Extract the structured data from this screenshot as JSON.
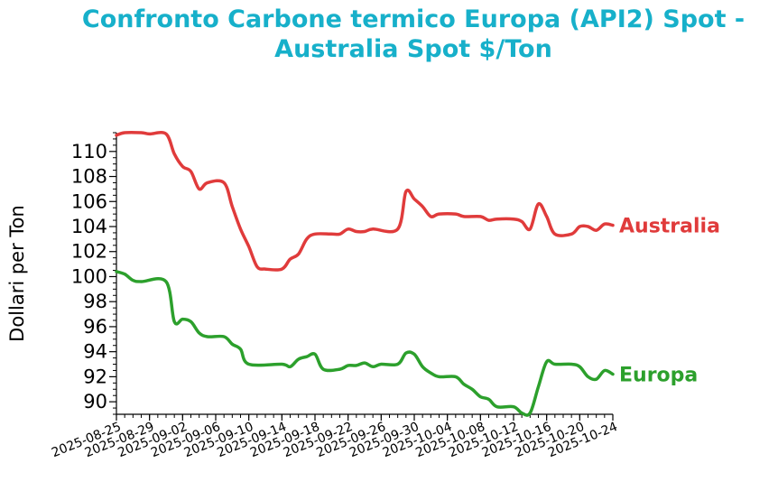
{
  "chart_data": {
    "type": "line",
    "title_lines": [
      "Confronto Carbone termico Europa (API2) Spot -",
      "Australia Spot $/Ton"
    ],
    "ylabel": "Dollari per Ton",
    "xlabel": "",
    "ylim": [
      89.0,
      111.5
    ],
    "yticks": [
      90,
      92,
      94,
      96,
      98,
      100,
      102,
      104,
      106,
      108,
      110
    ],
    "xlim": [
      "2025-08-25",
      "2025-10-24"
    ],
    "xticks": [
      "2025-08-25",
      "2025-08-29",
      "2025-09-02",
      "2025-09-06",
      "2025-09-10",
      "2025-09-14",
      "2025-09-18",
      "2025-09-22",
      "2025-09-26",
      "2025-09-30",
      "2025-10-04",
      "2025-10-08",
      "2025-10-12",
      "2025-10-16",
      "2025-10-20",
      "2025-10-24"
    ],
    "grid": false,
    "legend": "inline labels at right end of lines",
    "colors": {
      "title": "#17b0ca",
      "Australia": "#e03b3b",
      "Europa": "#2ca02c"
    },
    "series": [
      {
        "name": "Australia",
        "points": [
          [
            "2025-08-25",
            111.3
          ],
          [
            "2025-08-26",
            111.5
          ],
          [
            "2025-08-28",
            111.5
          ],
          [
            "2025-08-29",
            111.4
          ],
          [
            "2025-08-31",
            111.4
          ],
          [
            "2025-09-01",
            109.8
          ],
          [
            "2025-09-02",
            108.8
          ],
          [
            "2025-09-03",
            108.4
          ],
          [
            "2025-09-04",
            107.0
          ],
          [
            "2025-09-05",
            107.5
          ],
          [
            "2025-09-07",
            107.5
          ],
          [
            "2025-09-08",
            105.6
          ],
          [
            "2025-09-09",
            103.8
          ],
          [
            "2025-09-10",
            102.4
          ],
          [
            "2025-09-11",
            100.8
          ],
          [
            "2025-09-12",
            100.6
          ],
          [
            "2025-09-14",
            100.6
          ],
          [
            "2025-09-15",
            101.4
          ],
          [
            "2025-09-16",
            101.8
          ],
          [
            "2025-09-17",
            103.0
          ],
          [
            "2025-09-18",
            103.4
          ],
          [
            "2025-09-20",
            103.4
          ],
          [
            "2025-09-21",
            103.4
          ],
          [
            "2025-09-22",
            103.8
          ],
          [
            "2025-09-23",
            103.6
          ],
          [
            "2025-09-24",
            103.6
          ],
          [
            "2025-09-25",
            103.8
          ],
          [
            "2025-09-28",
            103.8
          ],
          [
            "2025-09-29",
            106.8
          ],
          [
            "2025-09-30",
            106.2
          ],
          [
            "2025-10-01",
            105.6
          ],
          [
            "2025-10-02",
            104.8
          ],
          [
            "2025-10-03",
            105.0
          ],
          [
            "2025-10-05",
            105.0
          ],
          [
            "2025-10-06",
            104.8
          ],
          [
            "2025-10-08",
            104.8
          ],
          [
            "2025-10-09",
            104.5
          ],
          [
            "2025-10-10",
            104.6
          ],
          [
            "2025-10-12",
            104.6
          ],
          [
            "2025-10-13",
            104.4
          ],
          [
            "2025-10-14",
            103.8
          ],
          [
            "2025-10-15",
            105.8
          ],
          [
            "2025-10-16",
            104.8
          ],
          [
            "2025-10-17",
            103.4
          ],
          [
            "2025-10-19",
            103.4
          ],
          [
            "2025-10-20",
            104.0
          ],
          [
            "2025-10-21",
            104.0
          ],
          [
            "2025-10-22",
            103.7
          ],
          [
            "2025-10-23",
            104.2
          ],
          [
            "2025-10-24",
            104.1
          ]
        ]
      },
      {
        "name": "Europa",
        "points": [
          [
            "2025-08-25",
            100.4
          ],
          [
            "2025-08-26",
            100.2
          ],
          [
            "2025-08-27",
            99.7
          ],
          [
            "2025-08-28",
            99.6
          ],
          [
            "2025-08-31",
            99.6
          ],
          [
            "2025-09-01",
            96.4
          ],
          [
            "2025-09-02",
            96.6
          ],
          [
            "2025-09-03",
            96.4
          ],
          [
            "2025-09-04",
            95.5
          ],
          [
            "2025-09-05",
            95.2
          ],
          [
            "2025-09-07",
            95.2
          ],
          [
            "2025-09-08",
            94.6
          ],
          [
            "2025-09-09",
            94.2
          ],
          [
            "2025-09-10",
            93.0
          ],
          [
            "2025-09-14",
            93.0
          ],
          [
            "2025-09-15",
            92.8
          ],
          [
            "2025-09-16",
            93.4
          ],
          [
            "2025-09-17",
            93.6
          ],
          [
            "2025-09-18",
            93.8
          ],
          [
            "2025-09-19",
            92.6
          ],
          [
            "2025-09-21",
            92.6
          ],
          [
            "2025-09-22",
            92.9
          ],
          [
            "2025-09-23",
            92.9
          ],
          [
            "2025-09-24",
            93.1
          ],
          [
            "2025-09-25",
            92.8
          ],
          [
            "2025-09-26",
            93.0
          ],
          [
            "2025-09-28",
            93.0
          ],
          [
            "2025-09-29",
            93.9
          ],
          [
            "2025-09-30",
            93.8
          ],
          [
            "2025-10-01",
            92.8
          ],
          [
            "2025-10-02",
            92.3
          ],
          [
            "2025-10-03",
            92.0
          ],
          [
            "2025-10-05",
            92.0
          ],
          [
            "2025-10-06",
            91.4
          ],
          [
            "2025-10-07",
            91.0
          ],
          [
            "2025-10-08",
            90.4
          ],
          [
            "2025-10-09",
            90.2
          ],
          [
            "2025-10-10",
            89.6
          ],
          [
            "2025-10-12",
            89.6
          ],
          [
            "2025-10-13",
            89.1
          ],
          [
            "2025-10-14",
            89.1
          ],
          [
            "2025-10-15",
            91.2
          ],
          [
            "2025-10-16",
            93.2
          ],
          [
            "2025-10-17",
            93.0
          ],
          [
            "2025-10-19",
            93.0
          ],
          [
            "2025-10-20",
            92.8
          ],
          [
            "2025-10-21",
            92.0
          ],
          [
            "2025-10-22",
            91.8
          ],
          [
            "2025-10-23",
            92.5
          ],
          [
            "2025-10-24",
            92.2
          ]
        ]
      }
    ]
  }
}
